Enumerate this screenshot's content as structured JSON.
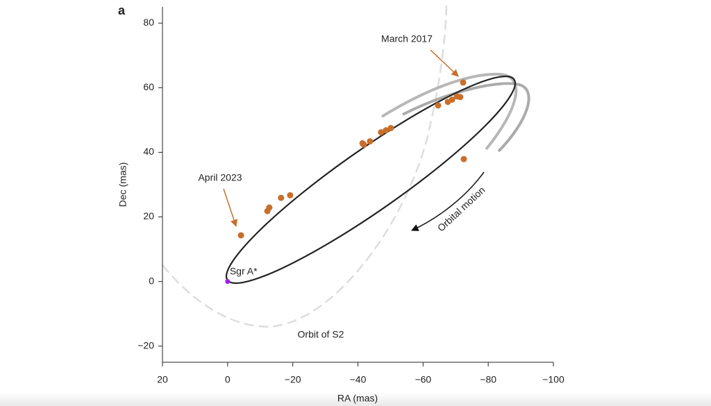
{
  "chart_data": {
    "type": "scatter",
    "panel_label": "a",
    "x_label": "RA (mas)",
    "y_label": "Dec (mas)",
    "xlim": [
      20,
      -100
    ],
    "xticks": [
      20,
      0,
      {
        "value": -20,
        "label": "−20"
      },
      {
        "value": -40,
        "label": "−40"
      },
      {
        "value": -60,
        "label": "−60"
      },
      {
        "value": -80,
        "label": "−80"
      },
      {
        "value": -100,
        "label": "−100"
      }
    ],
    "ylim": [
      -25,
      85
    ],
    "yticks": [
      {
        "value": -20,
        "label": "−20"
      },
      0,
      20,
      40,
      60,
      80
    ],
    "color": "#c86f2c",
    "x": [
      -4.1,
      -12.2,
      -12.8,
      -16.4,
      -19.2,
      -41.4,
      -41.8,
      -43.7,
      -47.1,
      -48.6,
      -50.1,
      -64.6,
      -67.6,
      -68.9,
      -70.4,
      -71.4,
      -72.3,
      -72.5
    ],
    "values": [
      14.3,
      21.8,
      22.9,
      25.9,
      26.7,
      42.8,
      42.4,
      43.4,
      46.2,
      46.8,
      47.5,
      54.5,
      55.6,
      56.3,
      57.3,
      57.1,
      61.6,
      37.9
    ],
    "center": {
      "label": "Sgr A*",
      "x": 0,
      "y": 0,
      "color": "#a020f0"
    },
    "annotations": [
      "March 2017",
      "April 2023",
      "Orbital motion",
      "Orbit of S2"
    ]
  }
}
